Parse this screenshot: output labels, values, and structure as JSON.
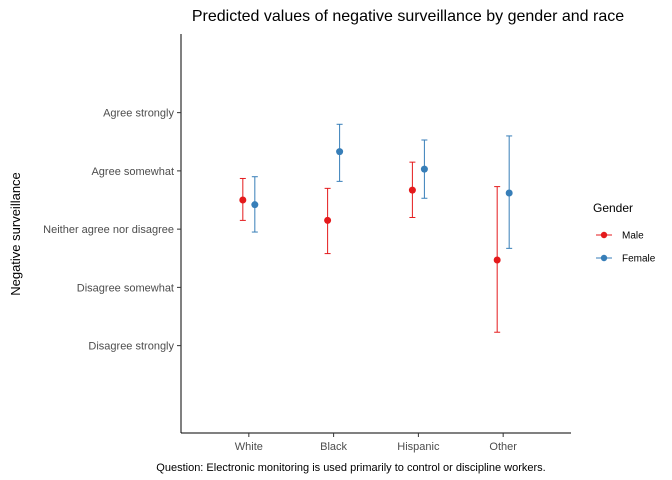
{
  "chart_data": {
    "type": "scatter",
    "title": "Predicted values of negative surveillance by gender and race",
    "ylabel": "Negative surveillance",
    "caption": "Question: Electronic monitoring is used primarily to control or discipline workers.",
    "categories": [
      "White",
      "Black",
      "Hispanic",
      "Other"
    ],
    "y_ticks": [
      {
        "value": 1,
        "label": "Disagree strongly"
      },
      {
        "value": 2,
        "label": "Disagree somewhat"
      },
      {
        "value": 3,
        "label": "Neither agree nor disagree"
      },
      {
        "value": 4,
        "label": "Agree somewhat"
      },
      {
        "value": 5,
        "label": "Agree strongly"
      }
    ],
    "ylim": [
      -0.5,
      6.35
    ],
    "grid": false,
    "legend": {
      "title": "Gender",
      "position": "right"
    },
    "series": [
      {
        "name": "Male",
        "color": "#e41a1c",
        "values": [
          3.5,
          3.15,
          3.67,
          2.47
        ],
        "lower": [
          3.15,
          2.58,
          3.2,
          1.23
        ],
        "upper": [
          3.87,
          3.7,
          4.15,
          3.73
        ]
      },
      {
        "name": "Female",
        "color": "#377eb8",
        "values": [
          3.42,
          4.33,
          4.03,
          3.62
        ],
        "lower": [
          2.95,
          3.82,
          3.53,
          2.67
        ],
        "upper": [
          3.9,
          4.8,
          4.53,
          4.6
        ]
      }
    ]
  }
}
